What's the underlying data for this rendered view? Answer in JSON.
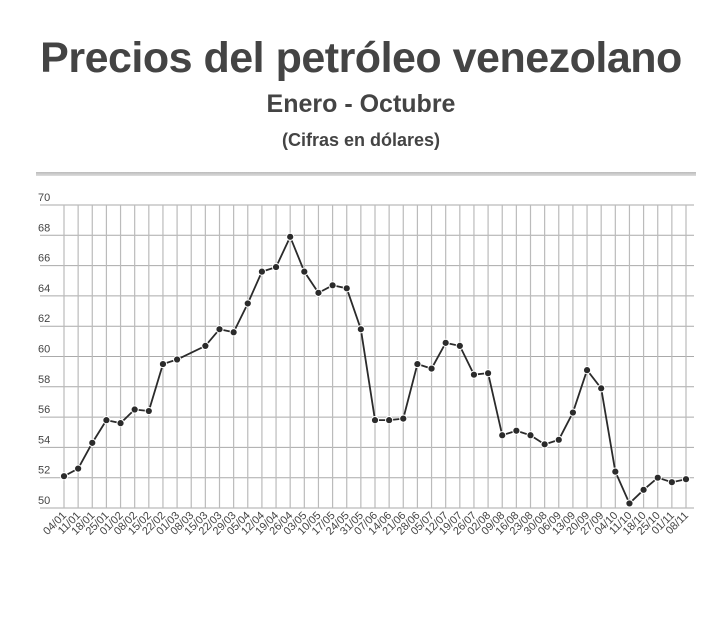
{
  "title": "Precios del petróleo venezolano",
  "subtitle": "Enero - Octubre",
  "note": "(Cifras en dólares)",
  "chart_data": {
    "type": "line",
    "title": "Precios del petróleo venezolano",
    "subtitle": "Enero - Octubre",
    "ylabel": "",
    "xlabel": "",
    "ylim": [
      50,
      70
    ],
    "yticks": [
      "50",
      "52",
      "54",
      "56",
      "58",
      "60",
      "62",
      "64",
      "66",
      "68",
      "70"
    ],
    "grid": true,
    "line_color": "#2b2b2b",
    "categories": [
      "04/01",
      "11/01",
      "18/01",
      "25/01",
      "01/02",
      "08/02",
      "15/02",
      "22/02",
      "01/03",
      "08/03",
      "15/03",
      "22/03",
      "29/03",
      "05/04",
      "12/04",
      "19/04",
      "26/04",
      "03/05",
      "10/05",
      "17/05",
      "24/05",
      "31/05",
      "07/06",
      "14/06",
      "21/06",
      "28/06",
      "05/07",
      "12/07",
      "19/07",
      "26/07",
      "02/08",
      "09/08",
      "16/08",
      "23/08",
      "30/08",
      "06/09",
      "13/09",
      "20/09",
      "27/09",
      "04/10",
      "11/10",
      "18/10",
      "25/10",
      "01/11",
      "08/11"
    ],
    "values": [
      52.1,
      52.6,
      54.3,
      55.8,
      55.6,
      56.5,
      56.4,
      59.5,
      59.8,
      null,
      60.7,
      61.8,
      61.6,
      63.5,
      65.6,
      65.9,
      67.9,
      65.6,
      64.2,
      64.7,
      64.5,
      61.8,
      55.8,
      55.8,
      55.9,
      59.5,
      59.2,
      60.9,
      60.7,
      58.8,
      58.9,
      54.8,
      55.1,
      54.8,
      54.2,
      54.5,
      56.3,
      59.1,
      57.9,
      52.4,
      50.3,
      51.2,
      52.0,
      51.7,
      51.9
    ]
  }
}
